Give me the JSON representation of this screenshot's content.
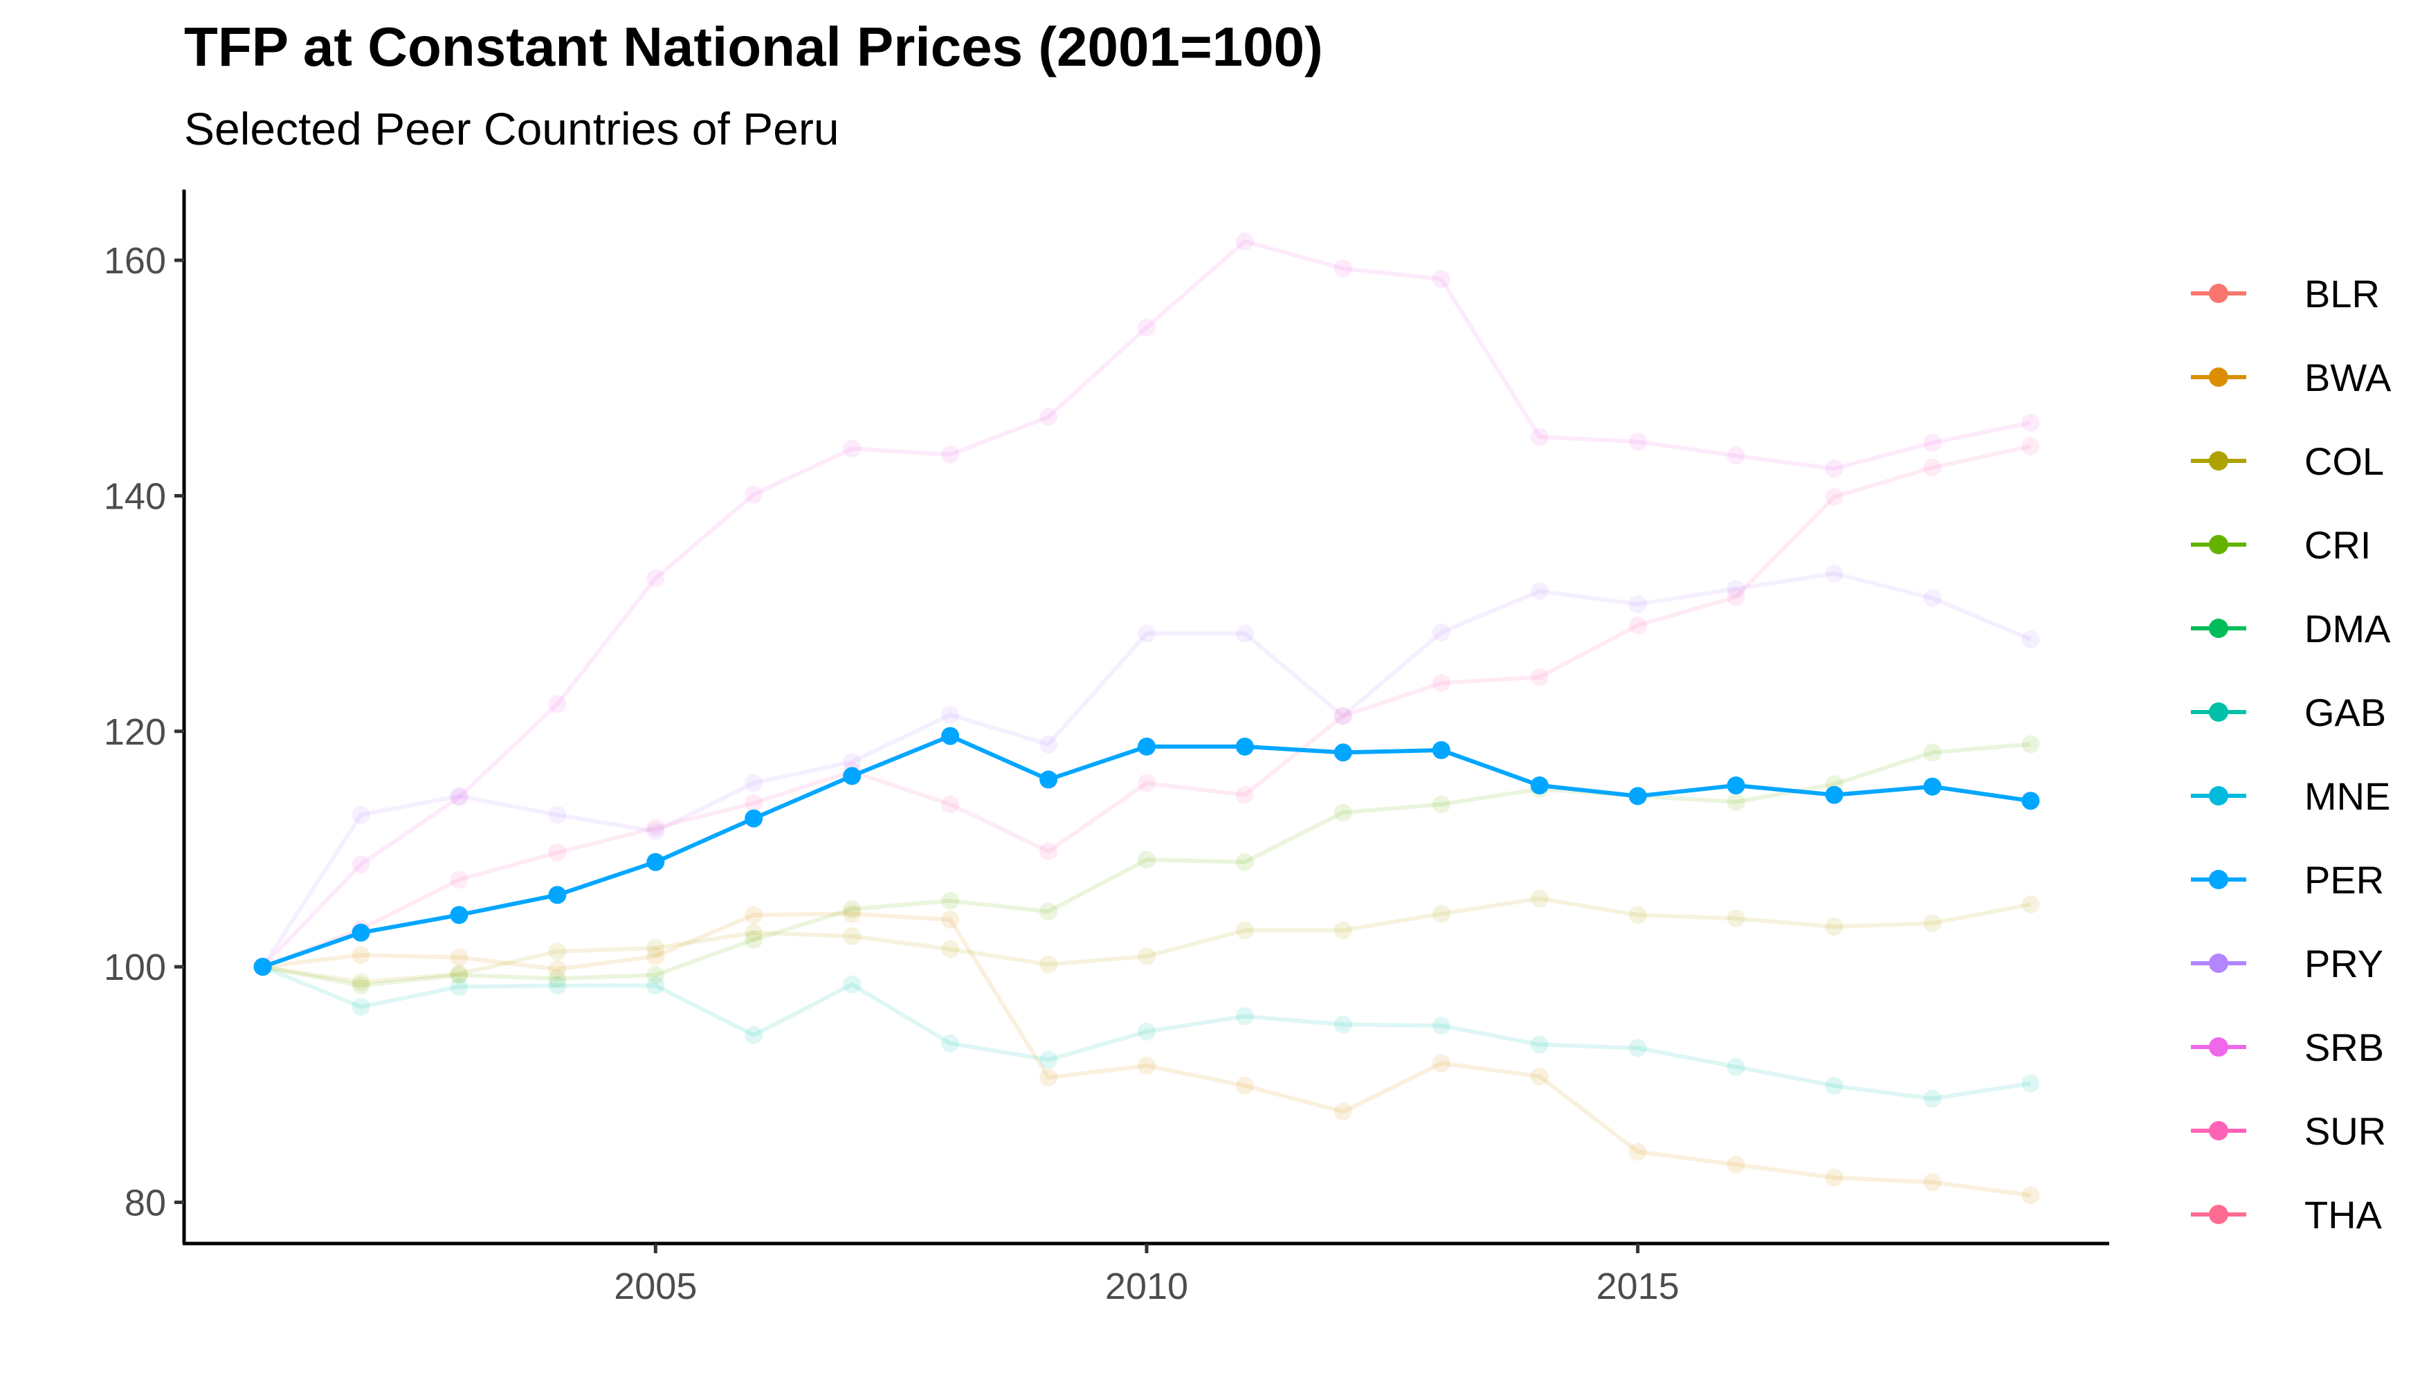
{
  "chart_data": {
    "type": "line",
    "title": "TFP at Constant National Prices (2001=100)",
    "subtitle": "Selected Peer Countries of Peru",
    "xlabel": "",
    "ylabel": "",
    "xlim": [
      2000.2,
      2019.8
    ],
    "ylim": [
      76.5,
      166
    ],
    "x_ticks": [
      2005,
      2010,
      2015
    ],
    "y_ticks": [
      80,
      100,
      120,
      140,
      160
    ],
    "grid": false,
    "legend_position": "right",
    "highlight_series": "PER",
    "x": [
      2001,
      2002,
      2003,
      2004,
      2005,
      2006,
      2007,
      2008,
      2009,
      2010,
      2011,
      2012,
      2013,
      2014,
      2015,
      2016,
      2017,
      2018,
      2019
    ],
    "series": [
      {
        "name": "BLR",
        "color": "#F8766D",
        "values": [
          null,
          null,
          null,
          null,
          null,
          null,
          null,
          null,
          null,
          null,
          null,
          null,
          null,
          null,
          null,
          null,
          null,
          null,
          null
        ]
      },
      {
        "name": "BWA",
        "color": "#DB8E00",
        "values": [
          100,
          101.0,
          100.8,
          99.8,
          100.9,
          104.4,
          104.5,
          104.0,
          90.6,
          91.6,
          89.9,
          87.7,
          91.8,
          90.7,
          84.3,
          83.2,
          82.1,
          81.7,
          80.6
        ]
      },
      {
        "name": "COL",
        "color": "#AEA200",
        "values": [
          100,
          98.7,
          99.4,
          101.3,
          101.6,
          102.9,
          102.6,
          101.5,
          100.2,
          100.9,
          103.1,
          103.1,
          104.5,
          105.8,
          104.4,
          104.1,
          103.4,
          103.7,
          105.3
        ]
      },
      {
        "name": "CRI",
        "color": "#64B200",
        "values": [
          100,
          98.4,
          99.3,
          99.0,
          99.3,
          102.3,
          104.9,
          105.6,
          104.7,
          109.1,
          108.9,
          113.1,
          113.8,
          115.1,
          114.5,
          114.0,
          115.5,
          118.2,
          118.9
        ]
      },
      {
        "name": "DMA",
        "color": "#00BD5C",
        "values": [
          null,
          null,
          null,
          null,
          null,
          null,
          null,
          null,
          null,
          null,
          null,
          null,
          null,
          null,
          null,
          null,
          null,
          null,
          null
        ]
      },
      {
        "name": "GAB",
        "color": "#00C1A7",
        "values": [
          100,
          96.6,
          98.3,
          98.4,
          98.4,
          94.2,
          98.5,
          93.5,
          92.1,
          94.5,
          95.8,
          95.1,
          95.0,
          93.4,
          93.1,
          91.5,
          89.9,
          88.8,
          90.1
        ]
      },
      {
        "name": "MNE",
        "color": "#00BADE",
        "values": [
          null,
          null,
          null,
          null,
          null,
          null,
          null,
          null,
          null,
          null,
          null,
          null,
          null,
          null,
          null,
          null,
          null,
          null,
          null
        ]
      },
      {
        "name": "PER",
        "color": "#00A6FF",
        "values": [
          100,
          102.9,
          104.4,
          106.1,
          108.9,
          112.6,
          116.2,
          119.6,
          115.9,
          118.7,
          118.7,
          118.2,
          118.4,
          115.4,
          114.5,
          115.4,
          114.6,
          115.3,
          114.1
        ]
      },
      {
        "name": "PRY",
        "color": "#B385FF",
        "values": [
          100,
          112.9,
          114.5,
          112.9,
          111.5,
          115.6,
          117.4,
          121.4,
          118.9,
          128.3,
          128.3,
          121.3,
          128.4,
          131.9,
          130.8,
          132.1,
          133.4,
          131.3,
          127.8
        ]
      },
      {
        "name": "SRB",
        "color": "#EF67EB",
        "values": [
          100,
          108.7,
          114.4,
          122.3,
          133.0,
          140.1,
          144.0,
          143.5,
          146.7,
          154.3,
          161.6,
          159.3,
          158.4,
          145.0,
          144.6,
          143.4,
          142.3,
          144.5,
          146.2
        ]
      },
      {
        "name": "SUR",
        "color": "#FF63B6",
        "values": [
          100,
          103.2,
          107.4,
          109.7,
          111.8,
          113.9,
          116.6,
          113.8,
          109.8,
          115.6,
          114.6,
          121.3,
          124.1,
          124.6,
          129.0,
          131.4,
          139.9,
          142.4,
          144.2
        ]
      },
      {
        "name": "THA",
        "color": "#FF6C91",
        "values": [
          null,
          null,
          null,
          null,
          null,
          null,
          null,
          null,
          null,
          null,
          null,
          null,
          null,
          null,
          null,
          null,
          null,
          null,
          null
        ]
      }
    ]
  }
}
